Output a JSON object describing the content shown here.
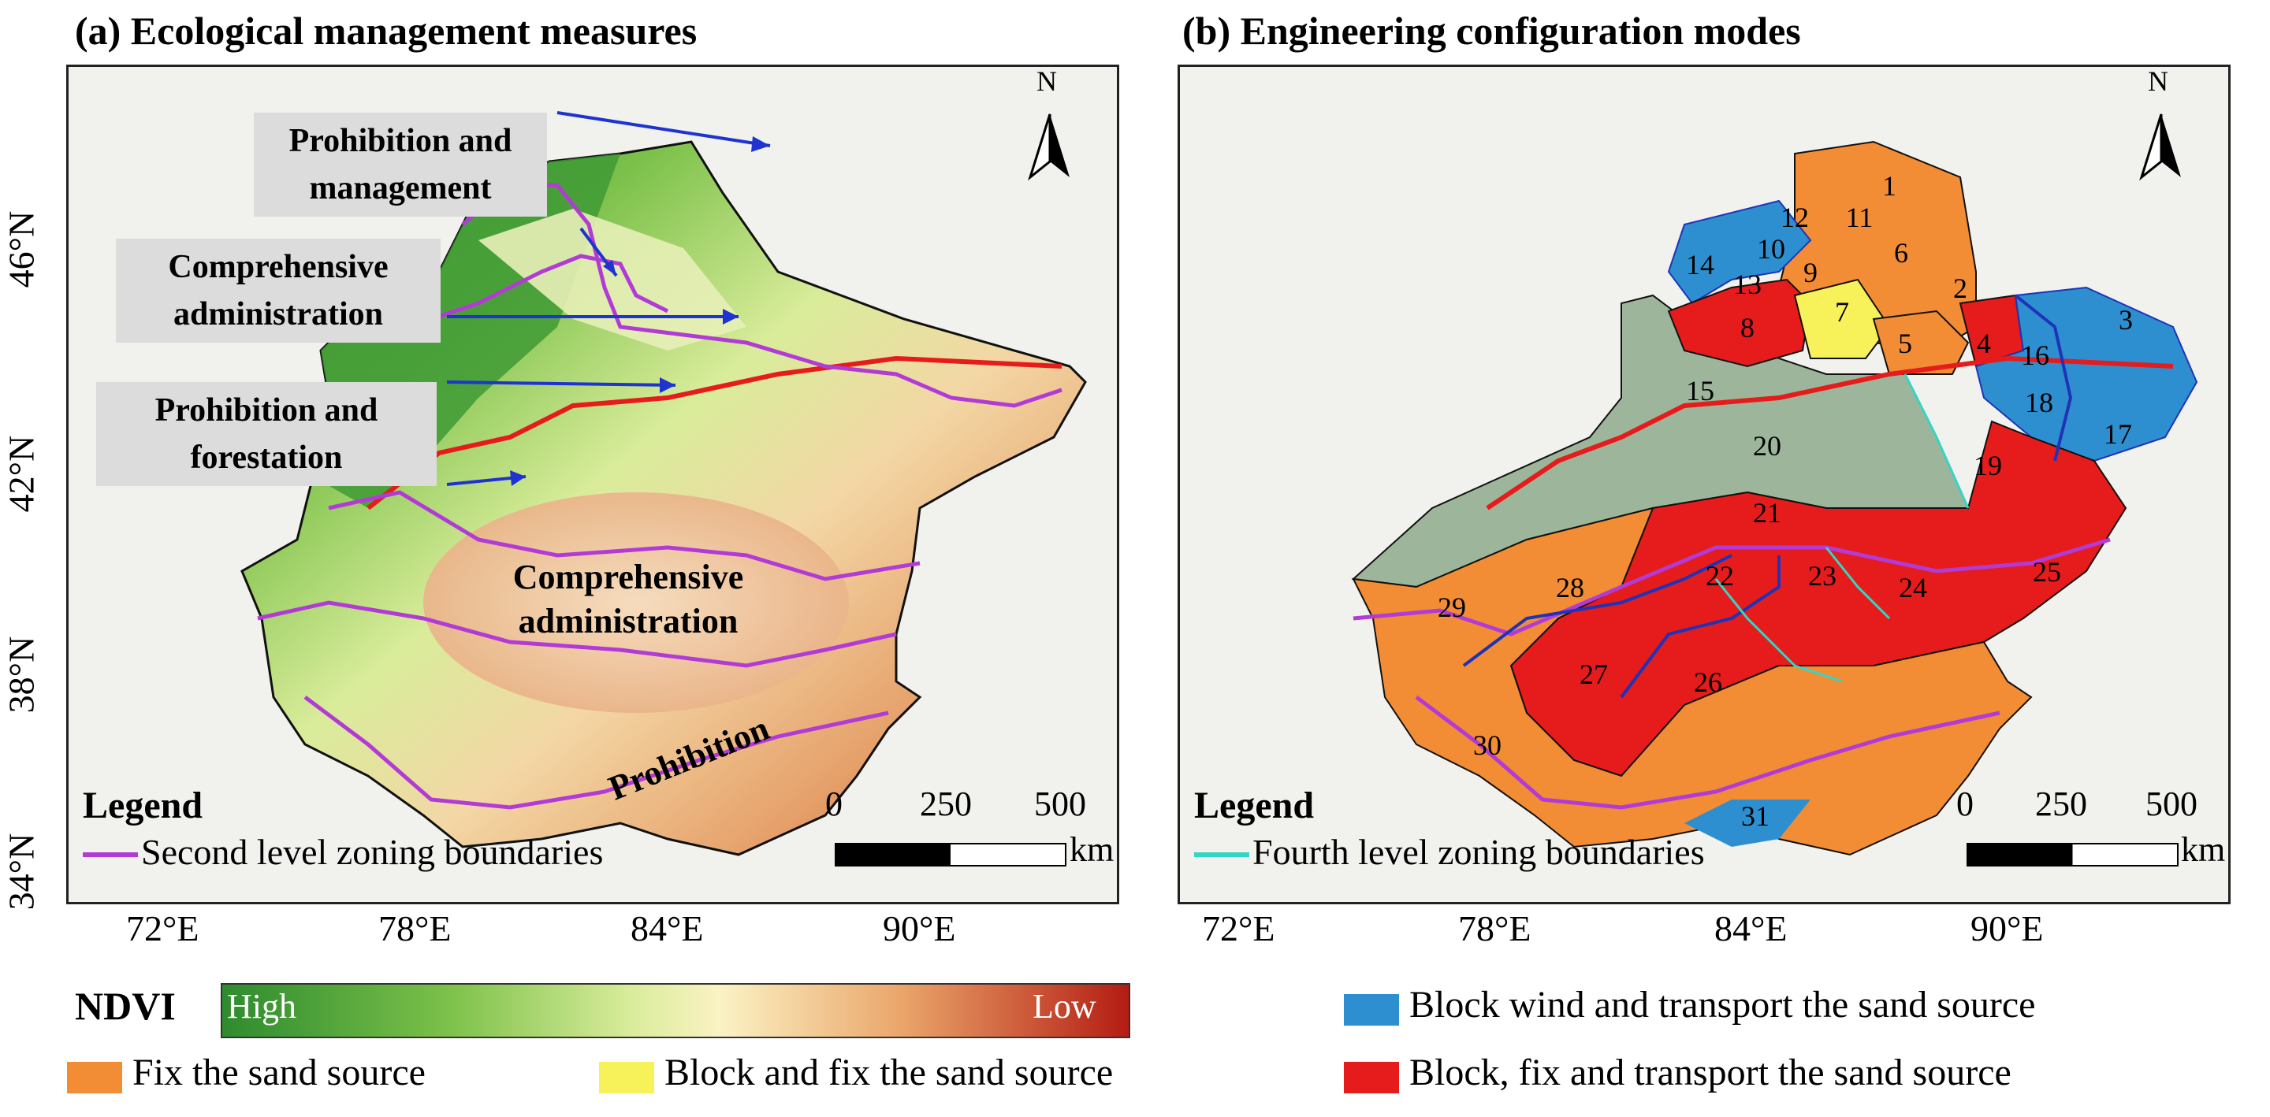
{
  "panel_a": {
    "title": "(a) Ecological management measures",
    "lat_labels": [
      "46°N",
      "42°N",
      "38°N",
      "34°N"
    ],
    "lon_labels": [
      "72°E",
      "78°E",
      "84°E",
      "90°E"
    ],
    "callouts": [
      "Prohibition and management",
      "Comprehensive administration",
      "Prohibition and forestation"
    ],
    "map_labels": [
      "Comprehensive administration",
      "Prohibition"
    ],
    "legend_title": "Legend",
    "legend_line": "Second level zoning boundaries",
    "scale": {
      "ticks": [
        "0",
        "250",
        "500"
      ],
      "unit": "km"
    },
    "north": "N"
  },
  "panel_b": {
    "title": "(b) Engineering configuration modes",
    "lon_labels": [
      "72°E",
      "78°E",
      "84°E",
      "90°E"
    ],
    "zone_numbers": [
      "1",
      "2",
      "3",
      "4",
      "5",
      "6",
      "7",
      "8",
      "9",
      "10",
      "11",
      "12",
      "13",
      "14",
      "15",
      "16",
      "17",
      "18",
      "19",
      "20",
      "21",
      "22",
      "23",
      "24",
      "25",
      "26",
      "27",
      "28",
      "29",
      "30",
      "31"
    ],
    "legend_title": "Legend",
    "legend_line": "Fourth level zoning boundaries",
    "scale": {
      "ticks": [
        "0",
        "250",
        "500"
      ],
      "unit": "km"
    },
    "north": "N"
  },
  "bottom_legend": {
    "ndvi_label": "NDVI",
    "ndvi_high": "High",
    "ndvi_low": "Low",
    "items": [
      {
        "label": "Block wind and transport the sand source",
        "color": "#2d8fcf"
      },
      {
        "label": "Fix the sand source",
        "color": "#f28c35"
      },
      {
        "label": "Block and fix the sand source",
        "color": "#f7f25a"
      },
      {
        "label": "Block, fix and transport the sand source",
        "color": "#e61b1b"
      }
    ]
  },
  "colors": {
    "second_level_boundary": "#b23bd6",
    "fourth_level_boundary": "#35d6c5",
    "third_level_boundary": "#1f33b8",
    "first_level_boundary": "#e61b1b",
    "grassland_zone": "#9db59a"
  }
}
